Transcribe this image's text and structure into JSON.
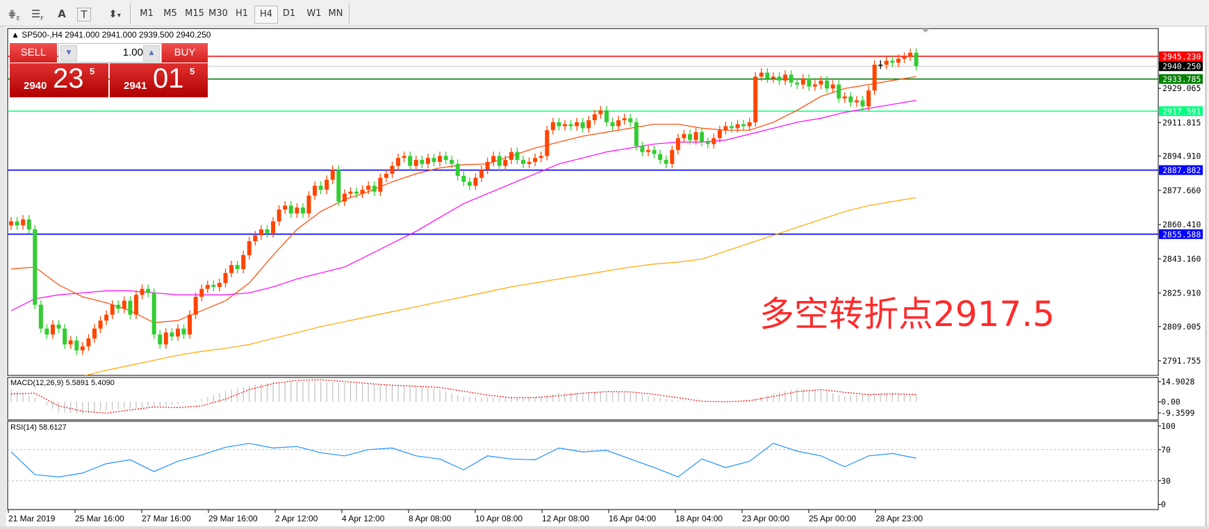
{
  "toolbar": {
    "tools": [
      {
        "icon": "elliott-wave-icon",
        "label": "E"
      },
      {
        "icon": "fibonacci-icon",
        "label": "F"
      },
      {
        "icon": "text-icon",
        "label": "A"
      },
      {
        "icon": "text-label-icon",
        "label": "T"
      },
      {
        "icon": "arrows-dropdown-icon",
        "label": "▾"
      }
    ],
    "timeframes": [
      "M1",
      "M5",
      "M15",
      "M30",
      "H1",
      "H4",
      "D1",
      "W1",
      "MN"
    ],
    "active_timeframe": "H4"
  },
  "chart": {
    "title": "▲ SP500-,H4  2941.000 2941.000 2939.500 2940.250",
    "symbol": "SP500-",
    "period": "H4",
    "annotation": "多空转折点2917.5",
    "annotation_color": "#ff2a2a"
  },
  "trade_panel": {
    "sell_label": "SELL",
    "buy_label": "BUY",
    "lot": "1.00",
    "sell_price": {
      "prefix": "2940",
      "big": "23",
      "sup": "5"
    },
    "buy_price": {
      "prefix": "2941",
      "big": "01",
      "sup": "5"
    }
  },
  "chart_data": {
    "type": "candlestick",
    "up_color": "#ff4500",
    "down_color": "#32cd32",
    "closes": [
      2862,
      2860,
      2863,
      2858,
      2820,
      2808,
      2805,
      2810,
      2808,
      2800,
      2802,
      2797,
      2799,
      2803,
      2808,
      2812,
      2815,
      2820,
      2818,
      2822,
      2815,
      2825,
      2828,
      2826,
      2805,
      2800,
      2806,
      2804,
      2808,
      2805,
      2815,
      2824,
      2828,
      2830,
      2829,
      2831,
      2836,
      2840,
      2838,
      2845,
      2852,
      2855,
      2858,
      2856,
      2862,
      2868,
      2870,
      2866,
      2869,
      2866,
      2875,
      2880,
      2878,
      2883,
      2888,
      2872,
      2876,
      2877,
      2876,
      2878,
      2880,
      2877,
      2884,
      2886,
      2890,
      2894,
      2895,
      2890,
      2893,
      2891,
      2894,
      2892,
      2895,
      2893,
      2891,
      2885,
      2882,
      2880,
      2884,
      2888,
      2892,
      2895,
      2890,
      2893,
      2897,
      2893,
      2891,
      2892,
      2894,
      2895,
      2908,
      2912,
      2910,
      2911,
      2910,
      2912,
      2909,
      2913,
      2916,
      2918,
      2912,
      2910,
      2913,
      2914,
      2912,
      2900,
      2897,
      2898,
      2896,
      2893,
      2891,
      2898,
      2904,
      2906,
      2903,
      2907,
      2902,
      2901,
      2904,
      2908,
      2910,
      2909,
      2911,
      2910,
      2912,
      2935,
      2937,
      2934,
      2935,
      2933,
      2936,
      2932,
      2931,
      2934,
      2930,
      2931,
      2933,
      2929,
      2931,
      2924,
      2925,
      2922,
      2923,
      2920,
      2928,
      2941,
      2941,
      2943,
      2942,
      2944,
      2945,
      2947,
      2940.25
    ],
    "moving_averages": [
      {
        "color": "#ff4500",
        "values": [
          2838,
          2839,
          2830,
          2824,
          2821,
          2817,
          2811,
          2812,
          2817,
          2822,
          2831,
          2845,
          2858,
          2867,
          2873,
          2877,
          2882,
          2886,
          2889,
          2890.6,
          2891,
          2895,
          2899,
          2902,
          2905,
          2907,
          2909,
          2911,
          2911,
          2909,
          2908,
          2908,
          2912,
          2918,
          2925,
          2929,
          2931,
          2933,
          2935
        ]
      },
      {
        "color": "#ff00ff",
        "values": [
          2817,
          2823,
          2825,
          2826,
          2827,
          2827,
          2826,
          2825,
          2825,
          2825,
          2826,
          2829,
          2833,
          2836,
          2839,
          2845,
          2851,
          2857,
          2864,
          2871,
          2876,
          2881,
          2886,
          2891,
          2894,
          2897,
          2899,
          2901,
          2902,
          2902,
          2903,
          2906,
          2909,
          2912,
          2914,
          2917,
          2919,
          2921,
          2923
        ]
      },
      {
        "color": "#ffa500",
        "values": [
          null,
          null,
          null,
          2784,
          2787,
          2789.5,
          2792,
          2794.5,
          2796.5,
          2798,
          2800,
          2803,
          2806,
          2809,
          2811.5,
          2814,
          2816.5,
          2819,
          2821.5,
          2824,
          2826.5,
          2829,
          2831,
          2833,
          2835,
          2837,
          2839,
          2840.5,
          2841.5,
          2843,
          2847,
          2851,
          2855,
          2859,
          2863,
          2867,
          2870,
          2872,
          2874
        ]
      }
    ],
    "price_axis": [
      "2929.065",
      "2911.815",
      "2894.910",
      "2877.660",
      "2860.410",
      "2843.160",
      "2825.910",
      "2809.005",
      "2791.755"
    ],
    "levels": [
      {
        "value": "2945.230",
        "color": "#ff0000",
        "text_color": "#ffffff"
      },
      {
        "value": "2940.250",
        "color": "#000000",
        "text_color": "#ffffff",
        "line_color": "#c0c0c0"
      },
      {
        "value": "2933.785",
        "color": "#008000",
        "text_color": "#ffffff"
      },
      {
        "value": "2917.591",
        "color": "#00ff7f",
        "text_color": "#ffffff"
      },
      {
        "value": "2887.882",
        "color": "#0000ff",
        "text_color": "#ffffff"
      },
      {
        "value": "2855.588",
        "color": "#0000ff",
        "text_color": "#ffffff"
      }
    ],
    "x_labels": [
      "21 Mar 2019",
      "25 Mar 16:00",
      "27 Mar 16:00",
      "29 Mar 16:00",
      "2 Apr 12:00",
      "4 Apr 12:00",
      "8 Apr 08:00",
      "10 Apr 08:00",
      "12 Apr 08:00",
      "16 Apr 04:00",
      "18 Apr 04:00",
      "23 Apr 00:00",
      "25 Apr 00:00",
      "28 Apr 23:00"
    ],
    "macd": {
      "label": "MACD(12,26,9) 5.5891 5.4090",
      "axis": [
        "14.9028",
        "0.00",
        "-9.3599"
      ],
      "histogram": [
        9,
        3,
        -8,
        -9,
        -6,
        -5,
        -3.5,
        -2,
        2,
        8,
        12,
        14.5,
        14.9,
        14.9,
        14,
        13,
        12.5,
        12,
        9,
        4,
        3,
        3,
        3.5,
        6.5,
        7,
        7.2,
        6.5,
        3.5,
        0.8,
        0.2,
        0,
        1,
        6,
        9.7,
        8.5,
        4,
        6,
        6.7,
        5.6
      ],
      "signal": [
        5.8,
        6.3,
        -3,
        -7,
        -8.4,
        -6,
        -3.8,
        -4.3,
        -3,
        2,
        9,
        13.5,
        15.8,
        16.2,
        15,
        13.5,
        12.2,
        11.5,
        10.6,
        7.8,
        5,
        3,
        3.1,
        4.5,
        6.3,
        7.5,
        7.3,
        5.5,
        3,
        0.4,
        0,
        0.8,
        4,
        7.5,
        9,
        7,
        5.3,
        5.8,
        5.4
      ],
      "histogram_color": "#c0c0c0",
      "signal_color": "#ff0000"
    },
    "rsi": {
      "label": "RSI(14) 58.6127",
      "axis": [
        "100",
        "70",
        "30",
        "0"
      ],
      "levels": [
        70,
        30
      ],
      "values": [
        67,
        38,
        35,
        40,
        52,
        57,
        42,
        55,
        63,
        73,
        78,
        72,
        74,
        66,
        62,
        70,
        72,
        62,
        58,
        44,
        62,
        58,
        57,
        72,
        67,
        69,
        58,
        47,
        35,
        58,
        47,
        55,
        78,
        68,
        62,
        48,
        62,
        65,
        59
      ],
      "color": "#1e90ff"
    }
  }
}
